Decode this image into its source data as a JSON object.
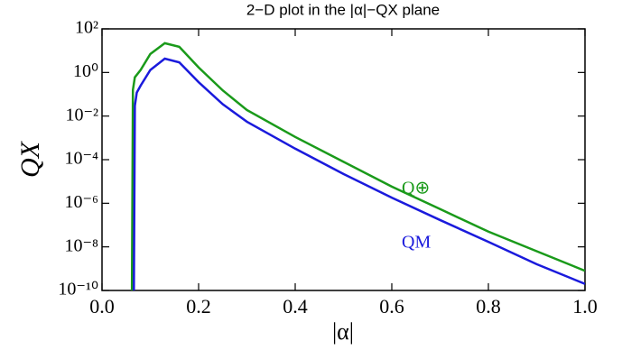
{
  "chart_data": {
    "type": "line",
    "title": "2−D plot in the |α|−QX  plane",
    "x_label": "|α|",
    "y_label": "QX",
    "log_y": true,
    "xlim": [
      0,
      1
    ],
    "ylim": [
      1e-10,
      100
    ],
    "xticks": [
      {
        "value": 0,
        "label": "0.0"
      },
      0.2,
      0.4,
      0.6,
      0.8,
      {
        "value": 1,
        "label": "1.0"
      }
    ],
    "yticks": [
      {
        "value": 1e-10,
        "label": "10⁻¹⁰"
      },
      {
        "value": 1e-08,
        "label": "10⁻⁸"
      },
      {
        "value": 1e-06,
        "label": "10⁻⁶"
      },
      {
        "value": 0.0001,
        "label": "10⁻⁴"
      },
      {
        "value": 0.01,
        "label": "10⁻²"
      },
      {
        "value": 1,
        "label": "10⁰"
      },
      {
        "value": 100,
        "label": "10²"
      }
    ],
    "series": [
      {
        "name": "Q⊕",
        "color": "#1a9a1a",
        "x": [
          0.062,
          0.064,
          0.068,
          0.08,
          0.1,
          0.13,
          0.16,
          0.2,
          0.25,
          0.3,
          0.4,
          0.5,
          0.6,
          0.7,
          0.8,
          0.9,
          1.0
        ],
        "values": [
          1e-10,
          0.16,
          0.6,
          1.3,
          7,
          22,
          15,
          1.7,
          0.15,
          0.019,
          0.0011,
          8e-05,
          5.8e-06,
          5.4e-07,
          5e-08,
          6.3e-09,
          8e-10
        ]
      },
      {
        "name": "QM",
        "color": "#1a1adc",
        "x": [
          0.066,
          0.068,
          0.072,
          0.08,
          0.1,
          0.13,
          0.16,
          0.2,
          0.25,
          0.3,
          0.4,
          0.5,
          0.6,
          0.7,
          0.8,
          0.9,
          1.0
        ],
        "values": [
          1e-10,
          0.03,
          0.12,
          0.25,
          1.3,
          4.3,
          2.9,
          0.36,
          0.035,
          0.0055,
          0.00032,
          2.2e-05,
          1.8e-06,
          1.7e-07,
          1.7e-08,
          1.6e-09,
          2e-10
        ]
      }
    ]
  }
}
